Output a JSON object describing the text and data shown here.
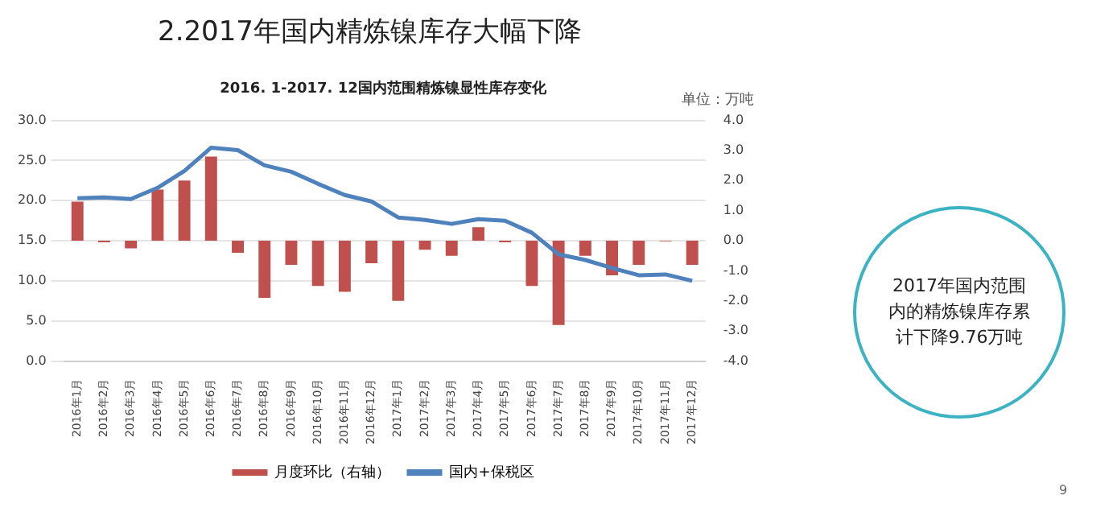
{
  "chart_data": {
    "type": "bar",
    "title": "2.2017年国内精炼镍库存大幅下降",
    "subtitle": "2016. 1-2017. 12国内范围精炼镍显性库存变化",
    "annotations": [
      "单位：万吨",
      "2017年国内范围内的精炼镍库存累计下降9.76万吨",
      "9"
    ],
    "categories": [
      "2016年1月",
      "2016年2月",
      "2016年3月",
      "2016年4月",
      "2016年5月",
      "2016年6月",
      "2016年7月",
      "2016年8月",
      "2016年9月",
      "2016年10月",
      "2016年11月",
      "2016年12月",
      "2017年1月",
      "2017年2月",
      "2017年3月",
      "2017年4月",
      "2017年5月",
      "2017年6月",
      "2017年7月",
      "2017年8月",
      "2017年9月",
      "2017年10月",
      "2017年11月",
      "2017年12月"
    ],
    "series": [
      {
        "name": "月度环比（右轴）",
        "axis": "y2",
        "color": "#c0504d",
        "values": [
          1.3,
          -0.05,
          -0.25,
          1.7,
          2.0,
          2.8,
          -0.4,
          -1.9,
          -0.8,
          -1.5,
          -1.7,
          -0.75,
          -2.0,
          -0.3,
          -0.5,
          0.45,
          -0.05,
          -1.5,
          -2.8,
          -0.5,
          -1.15,
          -0.8,
          -0.02,
          -0.8
        ]
      },
      {
        "name": "国内+保税区",
        "type": "line",
        "color": "#4f81bd",
        "values": [
          20.3,
          20.4,
          20.2,
          21.6,
          23.7,
          26.6,
          26.3,
          24.4,
          23.6,
          22.1,
          20.7,
          19.9,
          17.9,
          17.6,
          17.1,
          17.7,
          17.5,
          16.0,
          13.3,
          12.6,
          11.6,
          10.7,
          10.8,
          10.0
        ]
      }
    ],
    "ylim": [
      0,
      30
    ],
    "yticks": [
      {
        "value": 0,
        "label": "0.0"
      },
      {
        "value": 5,
        "label": "5.0"
      },
      {
        "value": 10,
        "label": "10.0"
      },
      {
        "value": 15,
        "label": "15.0"
      },
      {
        "value": 20,
        "label": "20.0"
      },
      {
        "value": 25,
        "label": "25.0"
      },
      {
        "value": 30,
        "label": "30.0"
      }
    ],
    "y2lim": [
      -4,
      4
    ],
    "y2ticks": [
      {
        "value": -4,
        "label": "-4.0"
      },
      {
        "value": -3,
        "label": "-3.0"
      },
      {
        "value": -2,
        "label": "-2.0"
      },
      {
        "value": -1,
        "label": "-1.0"
      },
      {
        "value": 0,
        "label": "0.0"
      },
      {
        "value": 1,
        "label": "1.0"
      },
      {
        "value": 2,
        "label": "2.0"
      },
      {
        "value": 3,
        "label": "3.0"
      },
      {
        "value": 4,
        "label": "4.0"
      }
    ],
    "grid": "y",
    "legend": "bottom",
    "marker": "none",
    "line_style": "solid"
  }
}
